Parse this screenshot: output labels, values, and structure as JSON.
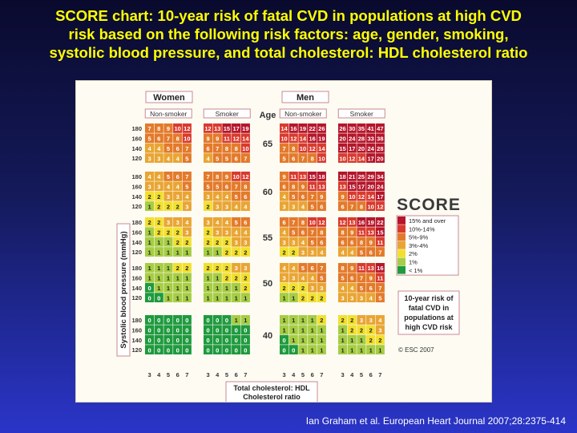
{
  "slide": {
    "title_lines": [
      "SCORE chart: 10-year risk of fatal CVD in populations at high CVD",
      "risk based on the following risk factors: age, gender, smoking,",
      "systolic blood pressure, and total cholesterol: HDL cholesterol ratio"
    ],
    "citation": "Ian Graham et al. European Heart Journal 2007;28:2375-414"
  },
  "chart_data": {
    "type": "heatmap",
    "gender_labels": [
      "Women",
      "Men"
    ],
    "smoking_labels": [
      "Non-smoker",
      "Smoker"
    ],
    "age_header": "Age",
    "ages": [
      "65",
      "60",
      "55",
      "50",
      "40"
    ],
    "sbp_values": [
      "180",
      "160",
      "140",
      "120"
    ],
    "cholesterol_ratios": [
      "3",
      "4",
      "5",
      "6",
      "7"
    ],
    "y_axis_label": "Systolic blood pressure (mmHg)",
    "x_axis_label_lines": [
      "Total cholesterol: HDL",
      "Cholesterol ratio"
    ],
    "logo_text": "SCORE",
    "legend": {
      "entries": [
        {
          "label": "15% and over",
          "color": "#b5162b"
        },
        {
          "label": "10%-14%",
          "color": "#d93a2e"
        },
        {
          "label": "5%-9%",
          "color": "#e37a2b"
        },
        {
          "label": "3%-4%",
          "color": "#e9a534"
        },
        {
          "label": "2%",
          "color": "#f2e02f"
        },
        {
          "label": "1%",
          "color": "#a6cd44"
        },
        {
          "label": "< 1%",
          "color": "#1f9a3e"
        }
      ]
    },
    "risk_box_lines": [
      "10-year risk of",
      "fatal CVD in",
      "populations at",
      "high CVD risk"
    ],
    "copyright": "© ESC 2007",
    "grids": {
      "women_nonsmoker": [
        [
          [
            7,
            8,
            9,
            10,
            12
          ],
          [
            5,
            6,
            7,
            8,
            10
          ],
          [
            4,
            4,
            5,
            6,
            7
          ],
          [
            3,
            3,
            4,
            4,
            5
          ]
        ],
        [
          [
            4,
            4,
            5,
            6,
            7
          ],
          [
            3,
            3,
            4,
            4,
            5
          ],
          [
            2,
            2,
            3,
            3,
            4
          ],
          [
            1,
            2,
            2,
            2,
            3
          ]
        ],
        [
          [
            2,
            2,
            3,
            3,
            4
          ],
          [
            1,
            2,
            2,
            2,
            3
          ],
          [
            1,
            1,
            1,
            2,
            2
          ],
          [
            1,
            1,
            1,
            1,
            1
          ]
        ],
        [
          [
            1,
            1,
            1,
            2,
            2
          ],
          [
            1,
            1,
            1,
            1,
            1
          ],
          [
            0,
            1,
            1,
            1,
            1
          ],
          [
            0,
            0,
            1,
            1,
            1
          ]
        ],
        [
          [
            0,
            0,
            0,
            0,
            0
          ],
          [
            0,
            0,
            0,
            0,
            0
          ],
          [
            0,
            0,
            0,
            0,
            0
          ],
          [
            0,
            0,
            0,
            0,
            0
          ]
        ]
      ],
      "women_smoker": [
        [
          [
            12,
            13,
            15,
            17,
            19
          ],
          [
            9,
            9,
            11,
            12,
            14
          ],
          [
            6,
            7,
            8,
            8,
            10
          ],
          [
            4,
            5,
            5,
            6,
            7
          ]
        ],
        [
          [
            7,
            8,
            9,
            10,
            12
          ],
          [
            5,
            5,
            6,
            7,
            8
          ],
          [
            3,
            4,
            4,
            5,
            6
          ],
          [
            2,
            3,
            3,
            4,
            4
          ]
        ],
        [
          [
            3,
            4,
            4,
            5,
            6
          ],
          [
            2,
            3,
            3,
            4,
            4
          ],
          [
            2,
            2,
            2,
            3,
            3
          ],
          [
            1,
            1,
            2,
            2,
            2
          ]
        ],
        [
          [
            2,
            2,
            2,
            3,
            3
          ],
          [
            1,
            1,
            2,
            2,
            2
          ],
          [
            1,
            1,
            1,
            1,
            2
          ],
          [
            1,
            1,
            1,
            1,
            1
          ]
        ],
        [
          [
            0,
            0,
            0,
            1,
            1
          ],
          [
            0,
            0,
            0,
            0,
            0
          ],
          [
            0,
            0,
            0,
            0,
            0
          ],
          [
            0,
            0,
            0,
            0,
            0
          ]
        ]
      ],
      "men_nonsmoker": [
        [
          [
            14,
            16,
            19,
            22,
            26
          ],
          [
            10,
            12,
            14,
            16,
            19
          ],
          [
            7,
            8,
            10,
            12,
            14
          ],
          [
            5,
            6,
            7,
            8,
            10
          ]
        ],
        [
          [
            9,
            11,
            13,
            15,
            18
          ],
          [
            6,
            8,
            9,
            11,
            13
          ],
          [
            4,
            5,
            6,
            7,
            9
          ],
          [
            3,
            3,
            4,
            5,
            6
          ]
        ],
        [
          [
            6,
            7,
            8,
            10,
            12
          ],
          [
            4,
            5,
            6,
            7,
            8
          ],
          [
            3,
            3,
            4,
            5,
            6
          ],
          [
            2,
            2,
            3,
            3,
            4
          ]
        ],
        [
          [
            4,
            4,
            5,
            6,
            7
          ],
          [
            3,
            3,
            4,
            4,
            5
          ],
          [
            2,
            2,
            2,
            3,
            3
          ],
          [
            1,
            1,
            2,
            2,
            2
          ]
        ],
        [
          [
            1,
            1,
            1,
            1,
            2
          ],
          [
            1,
            1,
            1,
            1,
            1
          ],
          [
            0,
            1,
            1,
            1,
            1
          ],
          [
            0,
            0,
            1,
            1,
            1
          ]
        ]
      ],
      "men_smoker": [
        [
          [
            26,
            30,
            35,
            41,
            47
          ],
          [
            20,
            24,
            28,
            33,
            38
          ],
          [
            15,
            17,
            20,
            24,
            28
          ],
          [
            10,
            12,
            14,
            17,
            20
          ]
        ],
        [
          [
            18,
            21,
            25,
            29,
            34
          ],
          [
            13,
            15,
            17,
            20,
            24
          ],
          [
            9,
            10,
            12,
            14,
            17
          ],
          [
            6,
            7,
            8,
            10,
            12
          ]
        ],
        [
          [
            12,
            13,
            16,
            19,
            22
          ],
          [
            8,
            9,
            11,
            13,
            15
          ],
          [
            6,
            6,
            8,
            9,
            11
          ],
          [
            4,
            4,
            5,
            6,
            7
          ]
        ],
        [
          [
            8,
            9,
            11,
            13,
            16
          ],
          [
            5,
            6,
            7,
            9,
            11
          ],
          [
            4,
            4,
            5,
            6,
            7
          ],
          [
            3,
            3,
            3,
            4,
            5
          ]
        ],
        [
          [
            2,
            2,
            3,
            3,
            4
          ],
          [
            1,
            2,
            2,
            2,
            3
          ],
          [
            1,
            1,
            1,
            2,
            2
          ],
          [
            1,
            1,
            1,
            1,
            1
          ]
        ]
      ]
    }
  }
}
